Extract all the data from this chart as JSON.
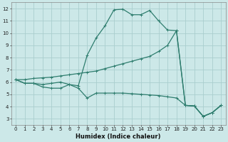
{
  "xlabel": "Humidex (Indice chaleur)",
  "background_color": "#cce8e8",
  "grid_color": "#aacece",
  "line_color": "#2e7d6e",
  "xlim": [
    -0.5,
    23.5
  ],
  "ylim": [
    2.5,
    12.5
  ],
  "xticks": [
    0,
    1,
    2,
    3,
    4,
    5,
    6,
    7,
    8,
    9,
    10,
    11,
    12,
    13,
    14,
    15,
    16,
    17,
    18,
    19,
    20,
    21,
    22,
    23
  ],
  "yticks": [
    3,
    4,
    5,
    6,
    7,
    8,
    9,
    10,
    11,
    12
  ],
  "series": [
    {
      "x": [
        0,
        1,
        2,
        3,
        4,
        5,
        6,
        7,
        8,
        9,
        10,
        11,
        12,
        13,
        14,
        15,
        16,
        17,
        18,
        19,
        20,
        21,
        22,
        23
      ],
      "y": [
        6.2,
        5.9,
        5.9,
        5.8,
        5.9,
        6.0,
        5.8,
        5.7,
        8.2,
        9.6,
        10.6,
        11.9,
        11.95,
        11.5,
        11.5,
        11.85,
        11.0,
        10.25,
        10.2,
        4.1,
        4.05,
        3.2,
        3.5,
        4.1
      ]
    },
    {
      "x": [
        0,
        1,
        2,
        3,
        4,
        5,
        6,
        7,
        8,
        9,
        10,
        11,
        12,
        13,
        14,
        15,
        16,
        17,
        18,
        19,
        20,
        21,
        22,
        23
      ],
      "y": [
        6.2,
        6.2,
        6.3,
        6.35,
        6.4,
        6.5,
        6.6,
        6.7,
        6.8,
        6.9,
        7.1,
        7.3,
        7.5,
        7.7,
        7.9,
        8.1,
        8.5,
        9.0,
        10.2,
        4.1,
        4.05,
        3.2,
        3.5,
        4.1
      ]
    },
    {
      "x": [
        0,
        1,
        2,
        3,
        4,
        5,
        6,
        7,
        8,
        9,
        10,
        11,
        12,
        13,
        14,
        15,
        16,
        17,
        18,
        19,
        20,
        21,
        22,
        23
      ],
      "y": [
        6.2,
        5.9,
        5.9,
        5.6,
        5.5,
        5.5,
        5.8,
        5.5,
        4.7,
        5.1,
        5.1,
        5.1,
        5.1,
        5.05,
        5.0,
        4.95,
        4.9,
        4.8,
        4.7,
        4.1,
        4.05,
        3.2,
        3.5,
        4.1
      ]
    }
  ]
}
